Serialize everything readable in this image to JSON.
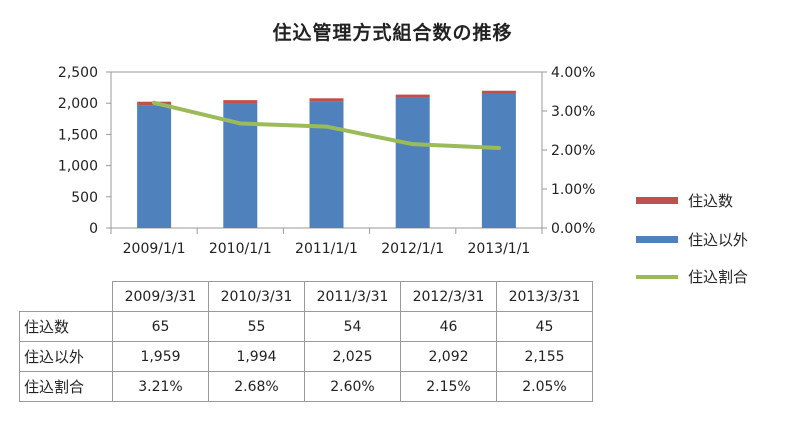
{
  "chart_data": {
    "type": "bar",
    "title": "住込管理方式組合数の推移",
    "categories": [
      "2009/1/1",
      "2010/1/1",
      "2011/1/1",
      "2012/1/1",
      "2013/1/1"
    ],
    "series": [
      {
        "name": "住込以外",
        "kind": "bar",
        "stack": "a",
        "color": "#4f81bd",
        "values": [
          1959,
          1994,
          2025,
          2092,
          2155
        ]
      },
      {
        "name": "住込数",
        "kind": "bar",
        "stack": "a",
        "color": "#c0504d",
        "values": [
          65,
          55,
          54,
          46,
          45
        ]
      },
      {
        "name": "住込割合",
        "kind": "line",
        "axis": "right",
        "color": "#9bbb59",
        "values": [
          3.21,
          2.68,
          2.6,
          2.15,
          2.05
        ]
      }
    ],
    "y_left": {
      "min": 0,
      "max": 2500,
      "step": 500,
      "tick_labels": [
        "0",
        "500",
        "1,000",
        "1,500",
        "2,000",
        "2,500"
      ]
    },
    "y_right": {
      "min": 0,
      "max": 4,
      "step": 1,
      "tick_labels": [
        "0.00%",
        "1.00%",
        "2.00%",
        "3.00%",
        "4.00%"
      ]
    },
    "grid": false,
    "legend_position": "right",
    "legend": [
      {
        "label": "住込数",
        "color": "#c0504d",
        "shape": "rect"
      },
      {
        "label": "住込以外",
        "color": "#4f81bd",
        "shape": "rect"
      },
      {
        "label": "住込割合",
        "color": "#9bbb59",
        "shape": "line"
      }
    ]
  },
  "table": {
    "headers": [
      "2009/3/31",
      "2010/3/31",
      "2011/3/31",
      "2012/3/31",
      "2013/3/31"
    ],
    "rows": [
      {
        "label": "住込数",
        "values": [
          "65",
          "55",
          "54",
          "46",
          "45"
        ]
      },
      {
        "label": "住込以外",
        "values": [
          "1,959",
          "1,994",
          "2,025",
          "2,092",
          "2,155"
        ]
      },
      {
        "label": "住込割合",
        "values": [
          "3.21%",
          "2.68%",
          "2.60%",
          "2.15%",
          "2.05%"
        ]
      }
    ]
  }
}
